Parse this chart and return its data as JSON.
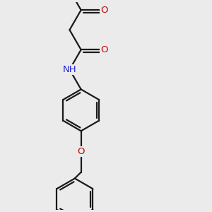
{
  "background_color": "#ebebeb",
  "bond_color": "#1a1a1a",
  "oxygen_color": "#cc0000",
  "nitrogen_color": "#2222cc",
  "line_width": 1.6,
  "font_size_atom": 9.5,
  "figsize": [
    3.0,
    3.0
  ],
  "dpi": 100,
  "xlim": [
    0,
    10
  ],
  "ylim": [
    0,
    10
  ]
}
